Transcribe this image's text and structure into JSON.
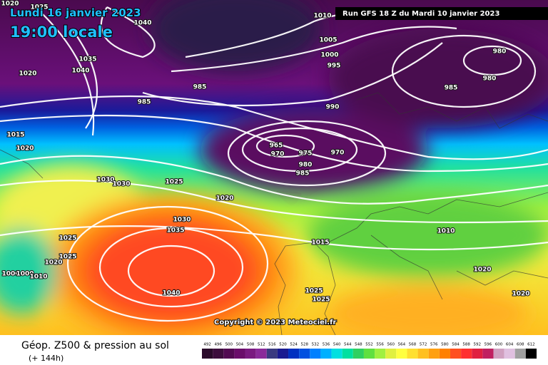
{
  "header": {
    "date": "Lundi 16 janvier 2023",
    "time": "19:00 locale",
    "run": "Run GFS 18 Z du Mardi 10 janvier 2023"
  },
  "footer": {
    "title": "Géop. Z500 & pression au sol",
    "subtitle": "(+ 144h)",
    "copyright": "Copyright © 2023 Meteociel.fr"
  },
  "isobar_labels": [
    1020,
    1025,
    1040,
    1010,
    1005,
    1000,
    995,
    980,
    980,
    985,
    985,
    985,
    990,
    1035,
    1040,
    1020,
    1015,
    1020,
    965,
    970,
    975,
    970,
    980,
    985,
    1030,
    1030,
    1025,
    1020,
    1030,
    1035,
    1025,
    1025,
    1020,
    1000,
    1000,
    1010,
    1040,
    1015,
    1010,
    1020,
    1020,
    1025,
    1025
  ],
  "legend": {
    "labels": [
      492,
      496,
      500,
      504,
      508,
      512,
      516,
      520,
      524,
      528,
      532,
      536,
      540,
      544,
      548,
      552,
      556,
      560,
      564,
      568,
      572,
      576,
      580,
      584,
      588,
      592,
      596,
      600,
      604,
      608,
      612
    ],
    "colors": [
      "#2a0a2a",
      "#3d0d3d",
      "#520a52",
      "#6a0d6a",
      "#7a1a80",
      "#8a2a9a",
      "#3a3a80",
      "#1a1a90",
      "#0030c0",
      "#0050e0",
      "#0080ff",
      "#00b0ff",
      "#00e0e0",
      "#00e0a0",
      "#30d060",
      "#60e040",
      "#a0f040",
      "#e0f040",
      "#ffff40",
      "#ffe030",
      "#ffc020",
      "#ffa010",
      "#ff8000",
      "#ff5020",
      "#ff3030",
      "#e02040",
      "#c02060",
      "#d0a0c0",
      "#e0c0e0",
      "#a0a0a0",
      "#000000"
    ]
  }
}
